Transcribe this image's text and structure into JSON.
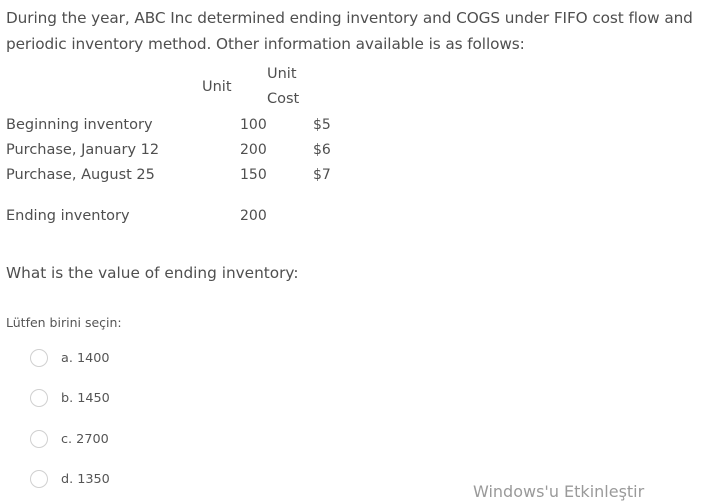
{
  "question_text": {
    "line1": "During the year, ABC Inc determined ending inventory and COGS under FIFO cost flow and",
    "line2": "periodic inventory method. Other information available is as follows:"
  },
  "table": {
    "header_unit": "Unit",
    "header_unit_cost_line1": "Unit",
    "header_unit_cost_line2": "Cost",
    "rows": [
      {
        "label": "Beginning inventory",
        "units": "100",
        "cost": "$5"
      },
      {
        "label": "Purchase, January 12",
        "units": "200",
        "cost": "$6"
      },
      {
        "label": "Purchase, August 25",
        "units": "150",
        "cost": "$7"
      },
      {
        "label": "Ending inventory",
        "units": "200",
        "cost": ""
      }
    ]
  },
  "question": "What is the value of ending inventory:",
  "prompt": "Lütfen birini seçin:",
  "options": [
    {
      "label": "a. 1400"
    },
    {
      "label": "b. 1450"
    },
    {
      "label": "c. 2700"
    },
    {
      "label": "d. 1350"
    }
  ],
  "watermark": "Windows'u Etkinleştir"
}
